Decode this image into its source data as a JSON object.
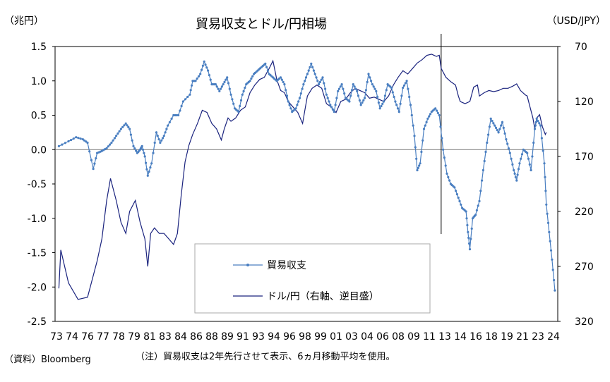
{
  "chart_data": {
    "type": "line",
    "title": "貿易収支とドル/円相場",
    "left_axis_unit": "（兆円）",
    "right_axis_unit": "（USD/JPY）",
    "y_left": {
      "min": -2.5,
      "max": 1.5,
      "ticks": [
        "1.5",
        "1.0",
        "0.5",
        "0.0",
        "-0.5",
        "-1.0",
        "-1.5",
        "-2.0",
        "-2.5"
      ]
    },
    "y_right": {
      "min": 70,
      "max": 320,
      "inverted": true,
      "ticks": [
        "70",
        "120",
        "170",
        "220",
        "270",
        "320"
      ]
    },
    "x_ticks": [
      "73",
      "74",
      "76",
      "77",
      "78",
      "79",
      "81",
      "83",
      "84",
      "86",
      "88",
      "89",
      "91",
      "93",
      "94",
      "96",
      "98",
      "99",
      "01",
      "03",
      "04",
      "06",
      "08",
      "09",
      "11",
      "13",
      "14",
      "16",
      "18",
      "19",
      "21",
      "23",
      "24"
    ],
    "vertical_marker_x": 2013.0,
    "legend_position": "bottom-center",
    "series": [
      {
        "name": "貿易収支",
        "axis": "left",
        "color": "#4a7fc1",
        "marker": "dot",
        "points": [
          [
            1973.0,
            0.05
          ],
          [
            1974.0,
            0.12
          ],
          [
            1974.8,
            0.18
          ],
          [
            1975.5,
            0.15
          ],
          [
            1976.0,
            0.1
          ],
          [
            1976.6,
            -0.28
          ],
          [
            1977.0,
            -0.05
          ],
          [
            1977.5,
            -0.02
          ],
          [
            1978.0,
            0.02
          ],
          [
            1978.5,
            0.1
          ],
          [
            1979.0,
            0.2
          ],
          [
            1979.5,
            0.3
          ],
          [
            1980.0,
            0.38
          ],
          [
            1980.4,
            0.3
          ],
          [
            1980.8,
            0.05
          ],
          [
            1981.2,
            -0.05
          ],
          [
            1981.5,
            0.0
          ],
          [
            1981.7,
            0.05
          ],
          [
            1982.0,
            -0.1
          ],
          [
            1982.3,
            -0.38
          ],
          [
            1982.7,
            -0.2
          ],
          [
            1983.2,
            0.25
          ],
          [
            1983.6,
            0.1
          ],
          [
            1984.0,
            0.2
          ],
          [
            1984.4,
            0.35
          ],
          [
            1985.0,
            0.5
          ],
          [
            1985.5,
            0.5
          ],
          [
            1986.0,
            0.7
          ],
          [
            1986.7,
            0.8
          ],
          [
            1987.0,
            1.0
          ],
          [
            1987.3,
            1.0
          ],
          [
            1987.8,
            1.1
          ],
          [
            1988.2,
            1.28
          ],
          [
            1988.6,
            1.15
          ],
          [
            1989.0,
            0.95
          ],
          [
            1989.4,
            0.95
          ],
          [
            1989.8,
            0.85
          ],
          [
            1990.2,
            0.95
          ],
          [
            1990.6,
            1.05
          ],
          [
            1991.0,
            0.8
          ],
          [
            1991.4,
            0.6
          ],
          [
            1991.8,
            0.55
          ],
          [
            1992.2,
            0.8
          ],
          [
            1992.6,
            0.95
          ],
          [
            1993.0,
            1.0
          ],
          [
            1993.4,
            1.1
          ],
          [
            1993.8,
            1.15
          ],
          [
            1994.2,
            1.2
          ],
          [
            1994.6,
            1.25
          ],
          [
            1995.0,
            1.1
          ],
          [
            1995.4,
            1.05
          ],
          [
            1995.8,
            1.0
          ],
          [
            1996.2,
            1.05
          ],
          [
            1996.6,
            0.95
          ],
          [
            1997.0,
            0.7
          ],
          [
            1997.4,
            0.55
          ],
          [
            1997.8,
            0.6
          ],
          [
            1998.2,
            0.75
          ],
          [
            1998.6,
            0.95
          ],
          [
            1999.0,
            1.1
          ],
          [
            1999.4,
            1.25
          ],
          [
            1999.8,
            1.1
          ],
          [
            2000.2,
            0.95
          ],
          [
            2000.6,
            1.05
          ],
          [
            2001.0,
            0.8
          ],
          [
            2001.4,
            0.65
          ],
          [
            2001.8,
            0.55
          ],
          [
            2002.2,
            0.85
          ],
          [
            2002.6,
            0.95
          ],
          [
            2003.0,
            0.75
          ],
          [
            2003.4,
            0.7
          ],
          [
            2003.8,
            0.95
          ],
          [
            2004.2,
            0.85
          ],
          [
            2004.6,
            0.65
          ],
          [
            2005.0,
            0.75
          ],
          [
            2005.4,
            1.1
          ],
          [
            2005.8,
            0.95
          ],
          [
            2006.2,
            0.85
          ],
          [
            2006.6,
            0.6
          ],
          [
            2007.0,
            0.7
          ],
          [
            2007.4,
            0.95
          ],
          [
            2007.8,
            0.9
          ],
          [
            2008.2,
            0.7
          ],
          [
            2008.6,
            0.55
          ],
          [
            2009.0,
            0.9
          ],
          [
            2009.4,
            1.0
          ],
          [
            2009.8,
            0.65
          ],
          [
            2010.2,
            0.2
          ],
          [
            2010.5,
            -0.3
          ],
          [
            2010.8,
            -0.2
          ],
          [
            2011.2,
            0.3
          ],
          [
            2011.6,
            0.45
          ],
          [
            2012.0,
            0.55
          ],
          [
            2012.4,
            0.6
          ],
          [
            2012.8,
            0.5
          ],
          [
            2013.2,
            0.0
          ],
          [
            2013.6,
            -0.35
          ],
          [
            2014.0,
            -0.5
          ],
          [
            2014.4,
            -0.55
          ],
          [
            2014.8,
            -0.7
          ],
          [
            2015.2,
            -0.85
          ],
          [
            2015.6,
            -0.9
          ],
          [
            2015.8,
            -1.2
          ],
          [
            2016.0,
            -1.45
          ],
          [
            2016.3,
            -1.0
          ],
          [
            2016.6,
            -0.95
          ],
          [
            2017.0,
            -0.75
          ],
          [
            2017.4,
            -0.3
          ],
          [
            2017.8,
            0.1
          ],
          [
            2018.2,
            0.45
          ],
          [
            2018.6,
            0.35
          ],
          [
            2019.0,
            0.25
          ],
          [
            2019.4,
            0.4
          ],
          [
            2019.8,
            0.15
          ],
          [
            2020.2,
            -0.05
          ],
          [
            2020.6,
            -0.3
          ],
          [
            2020.9,
            -0.45
          ],
          [
            2021.2,
            -0.2
          ],
          [
            2021.6,
            0.0
          ],
          [
            2022.0,
            -0.05
          ],
          [
            2022.4,
            -0.3
          ],
          [
            2022.8,
            0.3
          ],
          [
            2023.0,
            0.45
          ],
          [
            2023.4,
            0.35
          ],
          [
            2023.8,
            -0.2
          ],
          [
            2024.0,
            -0.8
          ],
          [
            2024.3,
            -1.2
          ],
          [
            2024.6,
            -1.6
          ],
          [
            2024.9,
            -2.05
          ]
        ]
      },
      {
        "name": "ドル/円（右軸、逆目盛）",
        "axis": "right",
        "color": "#1a237e",
        "marker": "none",
        "points": [
          [
            1973.0,
            290
          ],
          [
            1973.2,
            255
          ],
          [
            1974.0,
            285
          ],
          [
            1975.0,
            300
          ],
          [
            1976.0,
            298
          ],
          [
            1977.0,
            265
          ],
          [
            1977.5,
            245
          ],
          [
            1978.0,
            210
          ],
          [
            1978.4,
            190
          ],
          [
            1979.0,
            210
          ],
          [
            1979.5,
            230
          ],
          [
            1980.0,
            240
          ],
          [
            1980.4,
            220
          ],
          [
            1981.0,
            210
          ],
          [
            1981.5,
            230
          ],
          [
            1982.0,
            245
          ],
          [
            1982.3,
            270
          ],
          [
            1982.6,
            240
          ],
          [
            1983.0,
            235
          ],
          [
            1983.5,
            240
          ],
          [
            1984.0,
            240
          ],
          [
            1984.5,
            245
          ],
          [
            1985.0,
            250
          ],
          [
            1985.4,
            240
          ],
          [
            1985.8,
            205
          ],
          [
            1986.2,
            175
          ],
          [
            1986.6,
            160
          ],
          [
            1987.0,
            150
          ],
          [
            1987.5,
            140
          ],
          [
            1988.0,
            128
          ],
          [
            1988.5,
            130
          ],
          [
            1989.0,
            140
          ],
          [
            1989.5,
            145
          ],
          [
            1990.0,
            155
          ],
          [
            1990.3,
            145
          ],
          [
            1990.7,
            135
          ],
          [
            1991.0,
            138
          ],
          [
            1991.5,
            135
          ],
          [
            1992.0,
            128
          ],
          [
            1992.5,
            125
          ],
          [
            1993.0,
            112
          ],
          [
            1993.5,
            105
          ],
          [
            1994.0,
            100
          ],
          [
            1994.5,
            98
          ],
          [
            1995.0,
            90
          ],
          [
            1995.4,
            83
          ],
          [
            1995.8,
            100
          ],
          [
            1996.2,
            110
          ],
          [
            1996.6,
            112
          ],
          [
            1997.0,
            120
          ],
          [
            1997.5,
            125
          ],
          [
            1998.0,
            130
          ],
          [
            1998.5,
            140
          ],
          [
            1998.8,
            125
          ],
          [
            1999.0,
            115
          ],
          [
            1999.5,
            108
          ],
          [
            2000.0,
            105
          ],
          [
            2000.5,
            108
          ],
          [
            2001.0,
            122
          ],
          [
            2001.5,
            125
          ],
          [
            2002.0,
            130
          ],
          [
            2002.5,
            120
          ],
          [
            2003.0,
            118
          ],
          [
            2003.5,
            112
          ],
          [
            2004.0,
            108
          ],
          [
            2004.5,
            110
          ],
          [
            2005.0,
            112
          ],
          [
            2005.5,
            117
          ],
          [
            2006.0,
            116
          ],
          [
            2006.5,
            118
          ],
          [
            2007.0,
            120
          ],
          [
            2007.5,
            115
          ],
          [
            2008.0,
            105
          ],
          [
            2008.5,
            98
          ],
          [
            2009.0,
            92
          ],
          [
            2009.5,
            95
          ],
          [
            2010.0,
            90
          ],
          [
            2010.5,
            85
          ],
          [
            2011.0,
            82
          ],
          [
            2011.5,
            78
          ],
          [
            2012.0,
            77
          ],
          [
            2012.5,
            79
          ],
          [
            2012.8,
            78
          ],
          [
            2013.0,
            90
          ],
          [
            2013.5,
            98
          ],
          [
            2014.0,
            102
          ],
          [
            2014.5,
            105
          ],
          [
            2014.8,
            115
          ],
          [
            2015.0,
            120
          ],
          [
            2015.5,
            122
          ],
          [
            2016.0,
            120
          ],
          [
            2016.4,
            107
          ],
          [
            2016.8,
            105
          ],
          [
            2017.0,
            115
          ],
          [
            2017.5,
            112
          ],
          [
            2018.0,
            110
          ],
          [
            2018.5,
            111
          ],
          [
            2019.0,
            110
          ],
          [
            2019.5,
            108
          ],
          [
            2020.0,
            108
          ],
          [
            2020.5,
            106
          ],
          [
            2020.9,
            104
          ],
          [
            2021.3,
            110
          ],
          [
            2021.8,
            114
          ],
          [
            2022.0,
            115
          ],
          [
            2022.3,
            125
          ],
          [
            2022.6,
            135
          ],
          [
            2022.8,
            145
          ],
          [
            2023.0,
            135
          ],
          [
            2023.3,
            132
          ],
          [
            2023.6,
            143
          ],
          [
            2023.9,
            150
          ],
          [
            2024.0,
            148
          ]
        ]
      }
    ]
  },
  "footnotes": {
    "source": "（資料）Bloomberg",
    "note": "（注）貿易収支は2年先行させて表示、6ヵ月移動平均を使用。"
  }
}
